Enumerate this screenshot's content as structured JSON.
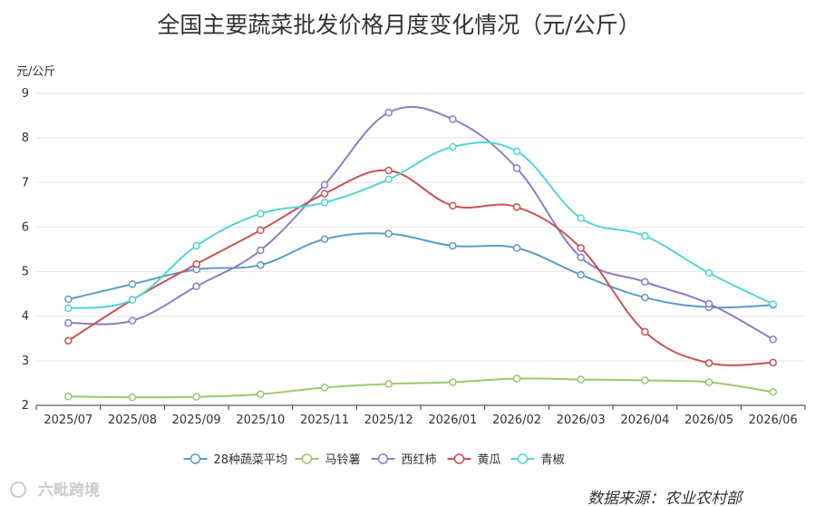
{
  "chart_data": {
    "type": "line",
    "title": "全国主要蔬菜批发价格月度变化情况（元/公斤）",
    "ylabel": "元/公斤",
    "xlabel": "",
    "ylim": [
      2,
      9
    ],
    "yticks": [
      2,
      3,
      4,
      5,
      6,
      7,
      8,
      9
    ],
    "grid": true,
    "smooth": true,
    "legend_position": "bottom",
    "categories": [
      "2025/07",
      "2025/08",
      "2025/09",
      "2025/10",
      "2025/11",
      "2025/12",
      "2026/01",
      "2026/02",
      "2026/03",
      "2026/04",
      "2026/05",
      "2026/06"
    ],
    "series": [
      {
        "name": "28种蔬菜平均",
        "color": "#5b9bc9",
        "values": [
          4.38,
          4.72,
          5.05,
          5.15,
          5.73,
          5.85,
          5.58,
          5.53,
          4.93,
          4.42,
          4.2,
          4.25
        ]
      },
      {
        "name": "马铃薯",
        "color": "#9dc76a",
        "values": [
          2.2,
          2.18,
          2.19,
          2.25,
          2.4,
          2.48,
          2.52,
          2.6,
          2.58,
          2.56,
          2.52,
          2.3
        ]
      },
      {
        "name": "西红柿",
        "color": "#8c7ec6",
        "values": [
          3.85,
          3.9,
          4.67,
          5.48,
          6.95,
          8.57,
          8.42,
          7.32,
          5.32,
          4.77,
          4.28,
          3.48
        ]
      },
      {
        "name": "黄瓜",
        "color": "#c95252",
        "values": [
          3.45,
          4.37,
          5.17,
          5.93,
          6.75,
          7.27,
          6.48,
          6.45,
          5.53,
          3.65,
          2.95,
          2.96
        ]
      },
      {
        "name": "青椒",
        "color": "#4fd6d6",
        "values": [
          4.18,
          4.37,
          5.58,
          6.3,
          6.55,
          7.07,
          7.8,
          7.7,
          6.2,
          5.8,
          4.97,
          4.27
        ]
      }
    ],
    "source": "数据来源：农业农村部",
    "watermark": "六毗跨境"
  }
}
